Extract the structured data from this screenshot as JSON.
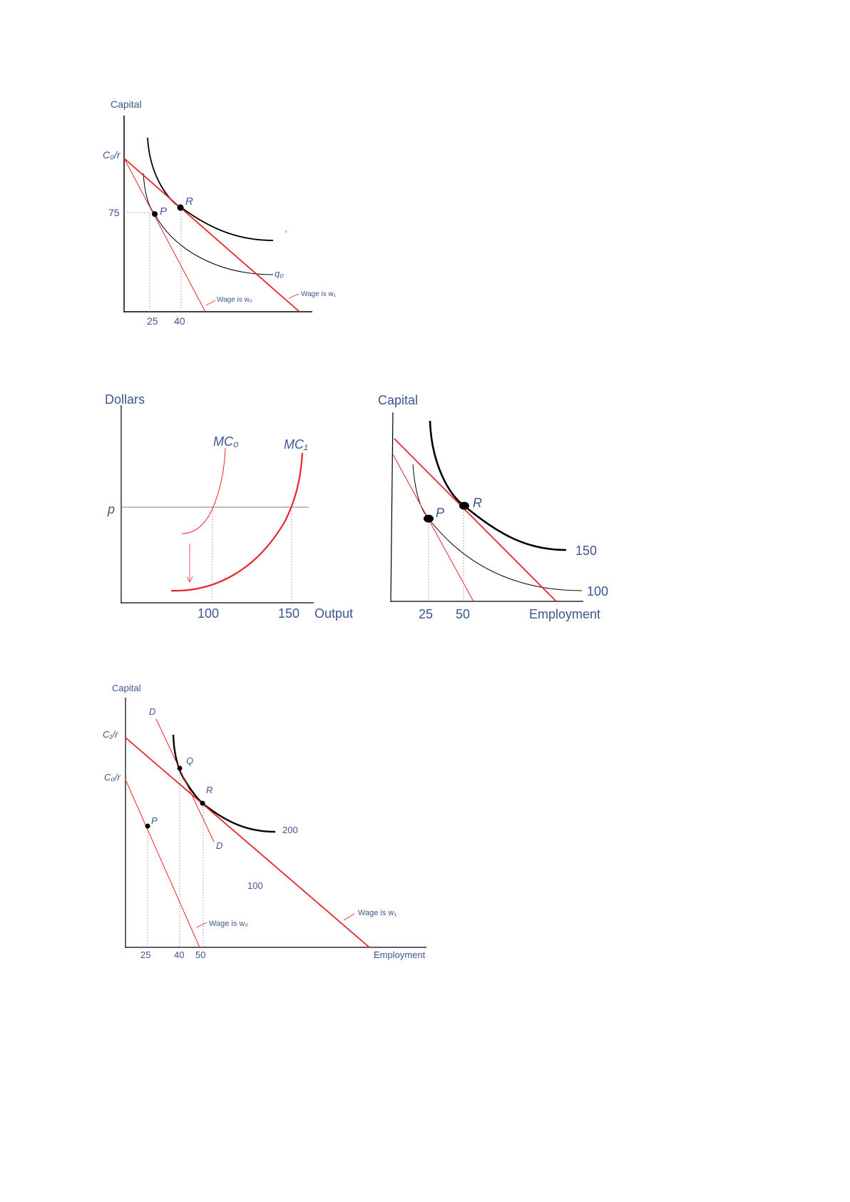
{
  "colors": {
    "curve_red": "#e8262a",
    "label_blue": "#3d5590",
    "isoquant": "#000000"
  },
  "diagram1": {
    "y_axis_label": "Capital",
    "intercept_label": "C₀/r",
    "y_tick": "75",
    "x_ticks": [
      "25",
      "40"
    ],
    "point_p": "P",
    "point_r": "R",
    "isoquant_label": "q₀",
    "stray_mark": "′",
    "wage_w0": "Wage is w₀",
    "wage_w1": "Wage is w₁"
  },
  "diagram2_left": {
    "y_axis_label": "Dollars",
    "price_label": "p",
    "mc0_label": "MC₀",
    "mc1_label": "MC₁",
    "x_ticks": [
      "100",
      "150"
    ],
    "x_axis_label": "Output"
  },
  "diagram2_right": {
    "y_axis_label": "Capital",
    "point_p": "P",
    "point_r": "R",
    "isoquant_high": "150",
    "isoquant_low": "100",
    "x_ticks": [
      "25",
      "50"
    ],
    "x_axis_label": "Employment"
  },
  "diagram3": {
    "y_axis_label": "Capital",
    "intercept_c1": "C₁/r",
    "intercept_c0": "C₀/r",
    "line_d_top": "D",
    "line_d_bottom": "D",
    "point_q": "Q",
    "point_r": "R",
    "point_p": "P",
    "isoquant_200": "200",
    "isoquant_100": "100",
    "wage_w0": "Wage is w₀",
    "wage_w1": "Wage is w₁",
    "x_ticks": [
      "25",
      "40",
      "50"
    ],
    "x_axis_label": "Employment"
  }
}
